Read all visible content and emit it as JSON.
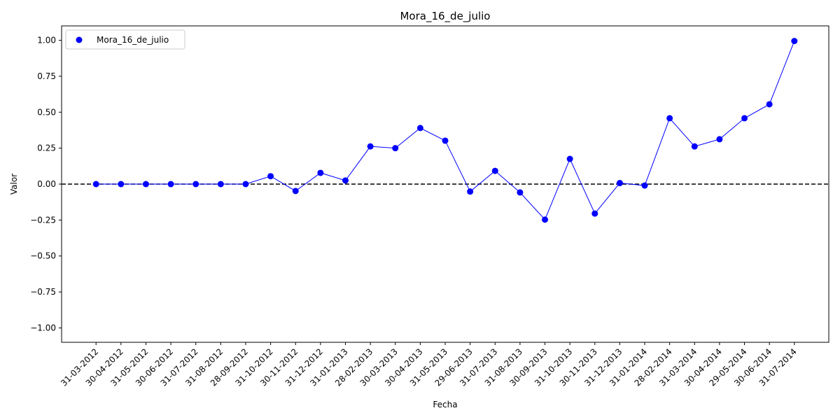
{
  "chart_data": {
    "type": "line",
    "title": "Mora_16_de_julio",
    "xlabel": "Fecha",
    "ylabel": "Valor",
    "ylim": [
      -1.1,
      1.1
    ],
    "yticks": [
      -1.0,
      -0.75,
      -0.5,
      -0.25,
      0.0,
      0.25,
      0.5,
      0.75,
      1.0
    ],
    "ytick_labels": [
      "−1.00",
      "−0.75",
      "−0.50",
      "−0.25",
      "0.00",
      "0.25",
      "0.50",
      "0.75",
      "1.00"
    ],
    "reference_line": {
      "y": 0,
      "style": "dashed",
      "color": "#000000"
    },
    "legend": {
      "placement": "top-left"
    },
    "categories": [
      "31-03-2012",
      "30-04-2012",
      "31-05-2012",
      "30-06-2012",
      "31-07-2012",
      "31-08-2012",
      "28-09-2012",
      "31-10-2012",
      "30-11-2012",
      "31-12-2012",
      "31-01-2013",
      "28-02-2013",
      "30-03-2013",
      "30-04-2013",
      "31-05-2013",
      "29-06-2013",
      "31-07-2013",
      "31-08-2013",
      "30-09-2013",
      "31-10-2013",
      "30-11-2013",
      "31-12-2013",
      "31-01-2014",
      "28-02-2014",
      "31-03-2014",
      "30-04-2014",
      "29-05-2014",
      "30-06-2014",
      "31-07-2014"
    ],
    "series": [
      {
        "name": "Mora_16_de_julio",
        "color": "#0000ff",
        "values": [
          0.0,
          0.0,
          0.0,
          0.0,
          0.0,
          0.0,
          0.0,
          0.055,
          -0.048,
          0.078,
          0.025,
          0.262,
          0.25,
          0.39,
          0.302,
          -0.052,
          0.092,
          -0.058,
          -0.247,
          0.175,
          -0.205,
          0.007,
          -0.01,
          0.458,
          0.262,
          0.312,
          0.458,
          0.555,
          0.995
        ]
      }
    ]
  }
}
